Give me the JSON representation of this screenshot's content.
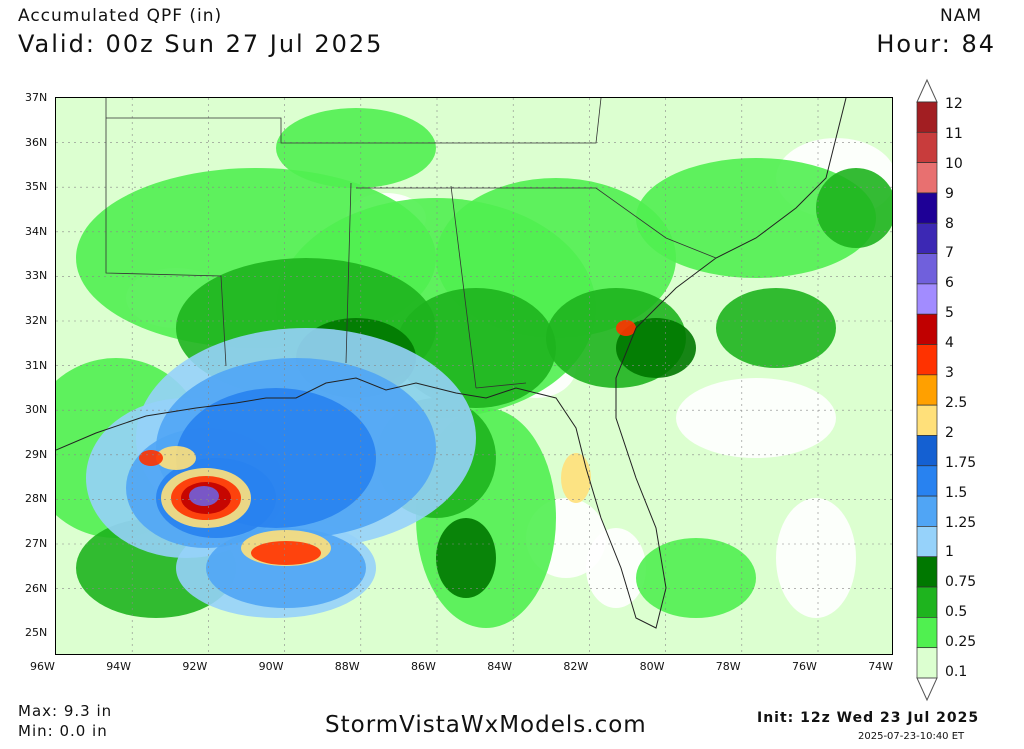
{
  "header": {
    "title": "Accumulated QPF (in)",
    "valid": "Valid: 00z Sun 27 Jul 2025",
    "model": "NAM",
    "hour": "Hour: 84"
  },
  "map": {
    "lat_labels": [
      "37N",
      "36N",
      "35N",
      "34N",
      "33N",
      "32N",
      "31N",
      "30N",
      "29N",
      "28N",
      "27N",
      "26N",
      "25N"
    ],
    "lon_labels": [
      "96W",
      "94W",
      "92W",
      "90W",
      "88W",
      "86W",
      "84W",
      "82W",
      "80W",
      "78W",
      "76W",
      "74W"
    ]
  },
  "colorbar": {
    "labels": [
      "12",
      "11",
      "10",
      "9",
      "8",
      "7",
      "6",
      "5",
      "4",
      "3",
      "2.5",
      "2",
      "1.75",
      "1.5",
      "1.25",
      "1",
      "0.75",
      "0.5",
      "0.25",
      "0.1"
    ],
    "colors": [
      "#a21e22",
      "#c83c3c",
      "#e87070",
      "#1e0096",
      "#3c28b4",
      "#7060dc",
      "#a28cff",
      "#c00000",
      "#ff3200",
      "#ffa000",
      "#ffe07a",
      "#1460d2",
      "#2882f0",
      "#50a5f5",
      "#96d2fa",
      "#007800",
      "#1eb41e",
      "#50f050",
      "#dcffd0"
    ]
  },
  "footer": {
    "max": "Max: 9.3 in",
    "min": "Min: 0.0 in",
    "site": "StormVistaWxModels.com",
    "init": "Init: 12z Wed 23 Jul 2025",
    "generated": "2025-07-23-10:40 ET"
  }
}
